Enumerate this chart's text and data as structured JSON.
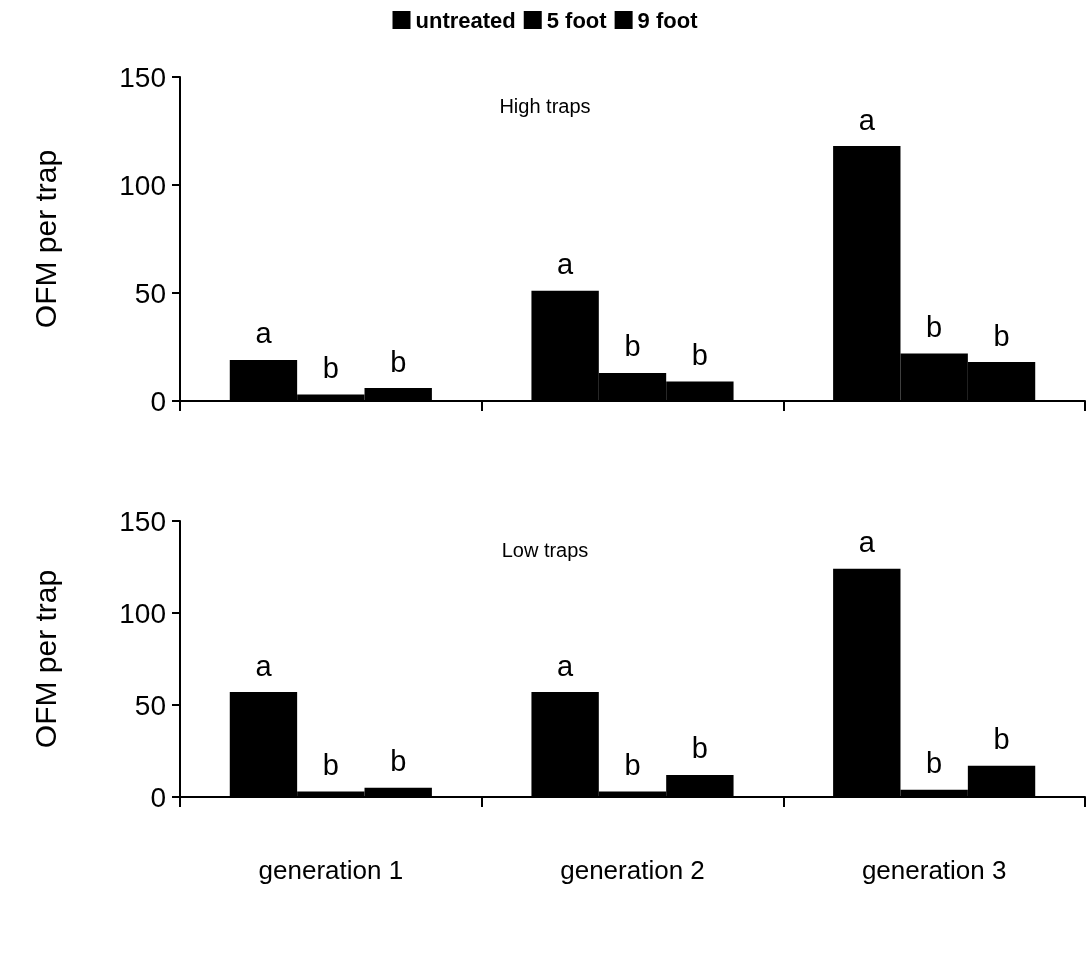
{
  "chart_data": [
    {
      "type": "bar",
      "title": "High traps",
      "ylabel": "OFM per trap",
      "categories": [
        null,
        null,
        null
      ],
      "ylim": [
        0,
        150
      ],
      "yticks": [
        0,
        50,
        100,
        150
      ],
      "grid": false,
      "legend": "top",
      "tick_labels": "y",
      "series": [
        {
          "name": "untreated",
          "color": "#000000",
          "values": [
            19,
            51,
            118
          ],
          "value_labels": [
            "a",
            "a",
            "a"
          ]
        },
        {
          "name": "5 foot",
          "color": "#000000",
          "values": [
            3,
            13,
            22
          ],
          "value_labels": [
            "b",
            "b",
            "b"
          ]
        },
        {
          "name": "9 foot",
          "color": "#000000",
          "values": [
            6,
            9,
            18
          ],
          "value_labels": [
            "b",
            "b",
            "b"
          ]
        }
      ]
    },
    {
      "type": "bar",
      "title": "Low traps",
      "ylabel": "OFM per trap",
      "categories": [
        "generation 1",
        "generation 2",
        "generation 3"
      ],
      "ylim": [
        0,
        150
      ],
      "yticks": [
        0,
        50,
        100,
        150
      ],
      "grid": false,
      "legend": false,
      "series": [
        {
          "color": "#000000",
          "values": [
            57,
            57,
            124
          ],
          "value_labels": [
            "a",
            "a",
            "a"
          ]
        },
        {
          "color": "#000000",
          "values": [
            3,
            3,
            4
          ],
          "value_labels": [
            "b",
            "b",
            "b"
          ]
        },
        {
          "color": "#000000",
          "values": [
            5,
            12,
            17
          ],
          "value_labels": [
            "b",
            "b",
            "b"
          ]
        }
      ]
    }
  ]
}
